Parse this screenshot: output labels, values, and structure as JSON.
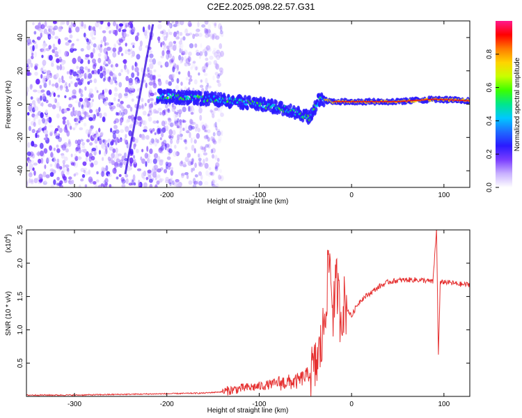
{
  "title": "C2E2.2025.098.22.57.G31",
  "chart_data": [
    {
      "type": "heatmap",
      "title": "C2E2.2025.098.22.57.G31",
      "xlabel": "Height of straight line (km)",
      "ylabel": "Frequency (Hz)",
      "xlim": [
        -352,
        128
      ],
      "ylim": [
        -50,
        50
      ],
      "xticks": [
        -300,
        -200,
        -100,
        0,
        100
      ],
      "yticks": [
        -40,
        -20,
        0,
        20,
        40
      ],
      "colorbar": {
        "label": "Normalized spectral amplitude",
        "range": [
          0,
          1
        ],
        "ticks": [
          0.0,
          0.2,
          0.4,
          0.6,
          0.8
        ],
        "colormap": [
          "#ffffff",
          "#c8b0ff",
          "#7a3dff",
          "#2a1aff",
          "#1e6bff",
          "#00c8ff",
          "#00e68c",
          "#3cff00",
          "#c8ff00",
          "#ffd400",
          "#ff7a00",
          "#ff0000",
          "#ff1a8c"
        ]
      },
      "features": {
        "noise_region_x": [
          -352,
          -140
        ],
        "doppler_streak": {
          "x": [
            -245,
            -215
          ],
          "y": [
            -42,
            48
          ]
        },
        "signal_track": [
          {
            "x": -210,
            "y": 5
          },
          {
            "x": -150,
            "y": 3
          },
          {
            "x": -100,
            "y": 0
          },
          {
            "x": -70,
            "y": -3
          },
          {
            "x": -45,
            "y": -8
          },
          {
            "x": -35,
            "y": 3
          },
          {
            "x": -20,
            "y": 1.5
          },
          {
            "x": 0,
            "y": 1.5
          },
          {
            "x": 50,
            "y": 1.5
          },
          {
            "x": 90,
            "y": 3
          },
          {
            "x": 128,
            "y": 2
          }
        ]
      }
    },
    {
      "type": "line",
      "xlabel": "Height of straight line (km)",
      "ylabel": "SNR (10 * v/v)",
      "yscale_label": "(x10",
      "yscale_exp": "4",
      "xlim": [
        -352,
        128
      ],
      "ylim": [
        0,
        2.5
      ],
      "xticks": [
        -300,
        -200,
        -100,
        0,
        100
      ],
      "yticks": [
        0.5,
        1.0,
        1.5,
        2.0,
        2.5
      ],
      "series": [
        {
          "color": "#e53030",
          "x": [
            -352,
            -300,
            -250,
            -200,
            -160,
            -140,
            -120,
            -100,
            -80,
            -60,
            -50,
            -40,
            -32,
            -28,
            -24,
            -20,
            -16,
            -12,
            -8,
            -4,
            0,
            5,
            10,
            20,
            30,
            40,
            50,
            60,
            70,
            80,
            88,
            92,
            94,
            96,
            100,
            110,
            120,
            128
          ],
          "y": [
            0.02,
            0.02,
            0.03,
            0.04,
            0.05,
            0.07,
            0.12,
            0.15,
            0.2,
            0.22,
            0.3,
            0.4,
            0.8,
            1.4,
            2.1,
            1.3,
            1.7,
            1.2,
            1.4,
            1.3,
            1.2,
            1.35,
            1.45,
            1.55,
            1.65,
            1.72,
            1.74,
            1.75,
            1.75,
            1.74,
            1.72,
            2.5,
            0.6,
            1.7,
            1.72,
            1.7,
            1.68,
            1.68
          ]
        }
      ]
    }
  ]
}
